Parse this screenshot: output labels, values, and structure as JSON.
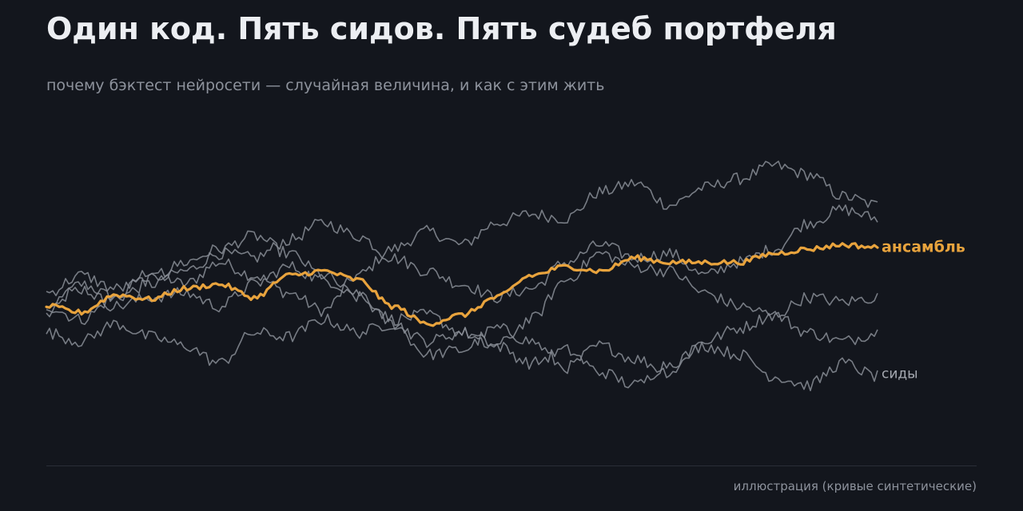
{
  "title": "Один код. Пять сидов. Пять судеб портфеля",
  "subtitle": "почему бэктест нейросети — случайная величина, и как с этим жить",
  "footnote": "иллюстрация (кривые синтетические)",
  "chart_data": {
    "type": "line",
    "title": "Один код. Пять сидов. Пять судеб портфеля",
    "xlabel": "",
    "ylabel": "",
    "grid": false,
    "legend": "direct labels at right end",
    "x_range": [
      0,
      1
    ],
    "y_range": [
      -1.6,
      1.6
    ],
    "labels": {
      "seeds": "сиды",
      "ensemble": "ансамбль"
    },
    "colors": {
      "background": "#13161d",
      "seed": "#8a8e96",
      "ensemble": "#e8a33d",
      "title": "#eceef2",
      "muted": "#8d929c"
    },
    "series": [
      {
        "values": [
          -0.15,
          0.2,
          0.05,
          0.35,
          0.2,
          0.45,
          0.3,
          0.1,
          -0.1,
          0.3,
          0.6,
          0.8,
          0.65,
          0.9,
          1.0,
          0.95,
          1.25,
          1.35,
          1.1,
          1.3,
          1.4,
          1.55,
          1.45,
          1.2,
          1.1
        ]
      },
      {
        "values": [
          -0.05,
          -0.2,
          0.05,
          0.2,
          0.35,
          0.55,
          0.5,
          0.7,
          0.9,
          0.75,
          0.5,
          0.35,
          0.2,
          0.05,
          0.15,
          0.45,
          0.65,
          0.5,
          0.55,
          0.3,
          0.45,
          0.6,
          0.9,
          1.05,
          0.95
        ]
      },
      {
        "values": [
          0.1,
          0.3,
          0.15,
          0.25,
          0.45,
          0.6,
          0.75,
          0.55,
          0.3,
          0.05,
          -0.25,
          -0.6,
          -0.55,
          -0.3,
          -0.45,
          -0.75,
          -0.5,
          -0.65,
          -0.8,
          -0.45,
          -0.3,
          -0.15,
          -0.35,
          -0.45,
          -0.35
        ]
      },
      {
        "values": [
          0.0,
          0.15,
          -0.05,
          0.05,
          0.1,
          -0.05,
          0.2,
          0.4,
          0.25,
          0.1,
          -0.2,
          -0.15,
          -0.35,
          -0.5,
          -0.2,
          0.25,
          0.55,
          0.4,
          0.35,
          0.1,
          -0.05,
          -0.15,
          0.05,
          0.0,
          0.05
        ]
      },
      {
        "values": [
          -0.35,
          -0.45,
          -0.25,
          -0.4,
          -0.5,
          -0.7,
          -0.35,
          -0.4,
          -0.2,
          -0.35,
          -0.25,
          -0.45,
          -0.35,
          -0.5,
          -0.7,
          -0.55,
          -0.8,
          -0.95,
          -0.7,
          -0.5,
          -0.6,
          -0.85,
          -0.95,
          -0.7,
          -0.85
        ]
      }
    ],
    "ensemble": {
      "values": [
        -0.05,
        -0.12,
        0.08,
        0.03,
        0.15,
        0.2,
        0.05,
        0.3,
        0.35,
        0.25,
        -0.05,
        -0.25,
        -0.15,
        0.05,
        0.3,
        0.4,
        0.35,
        0.5,
        0.45,
        0.45,
        0.45,
        0.55,
        0.6,
        0.65,
        0.62
      ]
    }
  }
}
